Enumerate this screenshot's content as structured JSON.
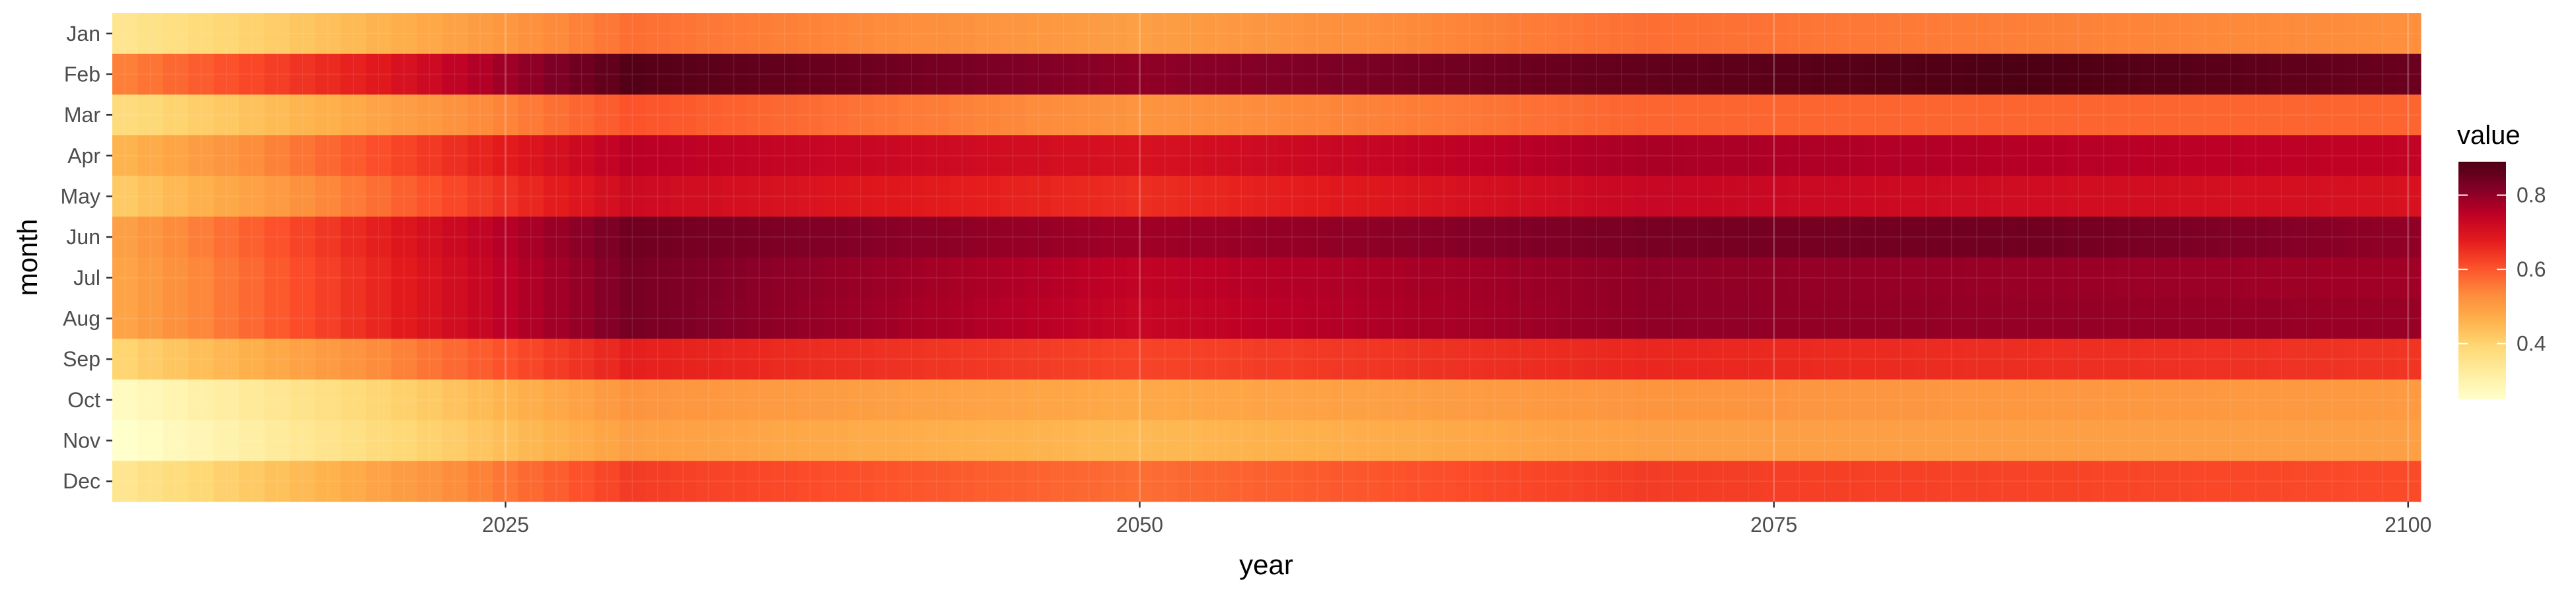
{
  "chart_data": {
    "type": "heatmap",
    "title": "",
    "xlabel": "year",
    "ylabel": "month",
    "x_start": 2010,
    "x_end": 2100,
    "xlim": [
      2009.5,
      2100.5
    ],
    "x_ticks": [
      2025,
      2050,
      2075,
      2100
    ],
    "y_categories": [
      "Jan",
      "Feb",
      "Mar",
      "Apr",
      "May",
      "Jun",
      "Jul",
      "Aug",
      "Sep",
      "Oct",
      "Nov",
      "Dec"
    ],
    "legend": {
      "title": "value",
      "position": "right",
      "range": [
        0.25,
        0.89
      ],
      "ticks": [
        0.4,
        0.6,
        0.8
      ],
      "tick_labels": [
        "0.4",
        "0.6",
        "0.8"
      ]
    },
    "color_scale": [
      "#ffffcc",
      "#ffeda0",
      "#fed976",
      "#feb24c",
      "#fd8d3c",
      "#fc4e2a",
      "#e31a1c",
      "#bd0026",
      "#800026",
      "#4d0013"
    ],
    "panel_background": "#ebebeb",
    "grid": true,
    "monthly_profiles": [
      {
        "month": "Jan",
        "years": [
          2010,
          2030,
          2050,
          2070,
          2100
        ],
        "values": [
          0.35,
          0.57,
          0.5,
          0.57,
          0.53
        ]
      },
      {
        "month": "Feb",
        "years": [
          2010,
          2020,
          2030,
          2050,
          2070,
          2085,
          2100
        ],
        "values": [
          0.55,
          0.68,
          0.88,
          0.8,
          0.86,
          0.89,
          0.85
        ]
      },
      {
        "month": "Mar",
        "years": [
          2010,
          2030,
          2050,
          2070,
          2100
        ],
        "values": [
          0.38,
          0.6,
          0.52,
          0.58,
          0.58
        ]
      },
      {
        "month": "Apr",
        "years": [
          2010,
          2030,
          2050,
          2070,
          2100
        ],
        "values": [
          0.46,
          0.75,
          0.7,
          0.77,
          0.74
        ]
      },
      {
        "month": "May",
        "years": [
          2010,
          2030,
          2050,
          2070,
          2100
        ],
        "values": [
          0.42,
          0.72,
          0.65,
          0.73,
          0.7
        ]
      },
      {
        "month": "Jun",
        "years": [
          2010,
          2020,
          2030,
          2050,
          2070,
          2085,
          2100
        ],
        "values": [
          0.5,
          0.67,
          0.84,
          0.78,
          0.83,
          0.84,
          0.8
        ]
      },
      {
        "month": "Jul",
        "years": [
          2010,
          2020,
          2030,
          2050,
          2070,
          2100
        ],
        "values": [
          0.49,
          0.66,
          0.83,
          0.74,
          0.8,
          0.78
        ]
      },
      {
        "month": "Aug",
        "years": [
          2010,
          2020,
          2030,
          2050,
          2070,
          2100
        ],
        "values": [
          0.49,
          0.66,
          0.83,
          0.73,
          0.8,
          0.79
        ]
      },
      {
        "month": "Sep",
        "years": [
          2010,
          2030,
          2050,
          2070,
          2100
        ],
        "values": [
          0.4,
          0.67,
          0.62,
          0.66,
          0.64
        ]
      },
      {
        "month": "Oct",
        "years": [
          2010,
          2030,
          2050,
          2070,
          2100
        ],
        "values": [
          0.27,
          0.52,
          0.48,
          0.52,
          0.51
        ]
      },
      {
        "month": "Nov",
        "years": [
          2010,
          2020,
          2030,
          2050,
          2070,
          2100
        ],
        "values": [
          0.25,
          0.38,
          0.5,
          0.45,
          0.5,
          0.5
        ]
      },
      {
        "month": "Dec",
        "years": [
          2010,
          2030,
          2050,
          2070,
          2100
        ],
        "values": [
          0.35,
          0.63,
          0.57,
          0.63,
          0.61
        ]
      }
    ]
  }
}
